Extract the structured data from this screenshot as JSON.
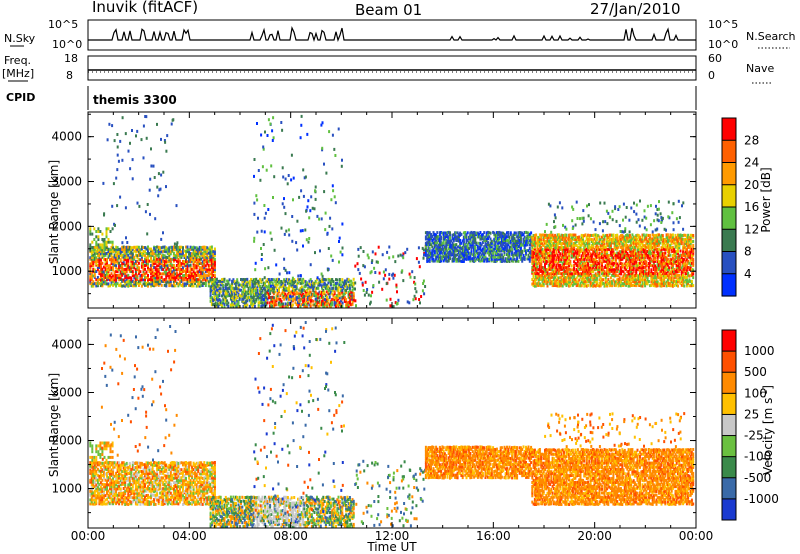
{
  "header": {
    "station": "Inuvik (fitACF)",
    "beam": "Beam 01",
    "date": "27/Jan/2010"
  },
  "sky_panel": {
    "left_label": "N.Sky",
    "right_label": "N.Search",
    "left_ticks": [
      "10^5",
      "10^0"
    ],
    "right_ticks": [
      "10^5",
      "10^0"
    ]
  },
  "freq_panel": {
    "left_label_1": "Freq.",
    "left_label_2": "[MHz]",
    "right_label": "Nave",
    "left_ticks": [
      "18",
      "8"
    ],
    "right_ticks": [
      "60",
      "0"
    ]
  },
  "cpid_panel": {
    "label": "CPID",
    "value": "themis 3300"
  },
  "chart_data": [
    {
      "type": "heatmap",
      "name": "power",
      "xlabel": "Time UT",
      "ylabel": "Slant Range [km]",
      "xlim_hours": [
        0,
        24
      ],
      "ylim": [
        180,
        4550
      ],
      "x_ticks": [
        "00:00",
        "04:00",
        "08:00",
        "12:00",
        "16:00",
        "20:00",
        "00:00"
      ],
      "y_ticks": [
        1000,
        2000,
        3000,
        4000
      ],
      "colorbar_label": "Power [dB]",
      "colorbar_ticks": [
        "28",
        "24",
        "20",
        "16",
        "12",
        "8",
        "4"
      ],
      "colors": [
        "#0030ff",
        "#2850c0",
        "#3a7a50",
        "#60c040",
        "#e8d000",
        "#ff9a00",
        "#ff6000",
        "#ff0000"
      ]
    },
    {
      "type": "heatmap",
      "name": "velocity",
      "xlabel": "Time UT",
      "ylabel": "Slant Range [km]",
      "xlim_hours": [
        0,
        24
      ],
      "ylim": [
        180,
        4550
      ],
      "x_ticks": [
        "00:00",
        "04:00",
        "08:00",
        "12:00",
        "16:00",
        "20:00",
        "00:00"
      ],
      "y_ticks": [
        1000,
        2000,
        3000,
        4000
      ],
      "colorbar_label_1": "Velocity [m s",
      "colorbar_label_2": "-1",
      "colorbar_label_3": "]",
      "colorbar_ticks": [
        "1000",
        "500",
        "100",
        "25",
        "-25",
        "-100",
        "-500",
        "-1000"
      ],
      "colors": [
        "#1a3ad0",
        "#3a6aa8",
        "#3a8a4a",
        "#6ac040",
        "#c8c8c8",
        "#ffc000",
        "#ff8a00",
        "#ff5000",
        "#ff0000"
      ]
    }
  ]
}
